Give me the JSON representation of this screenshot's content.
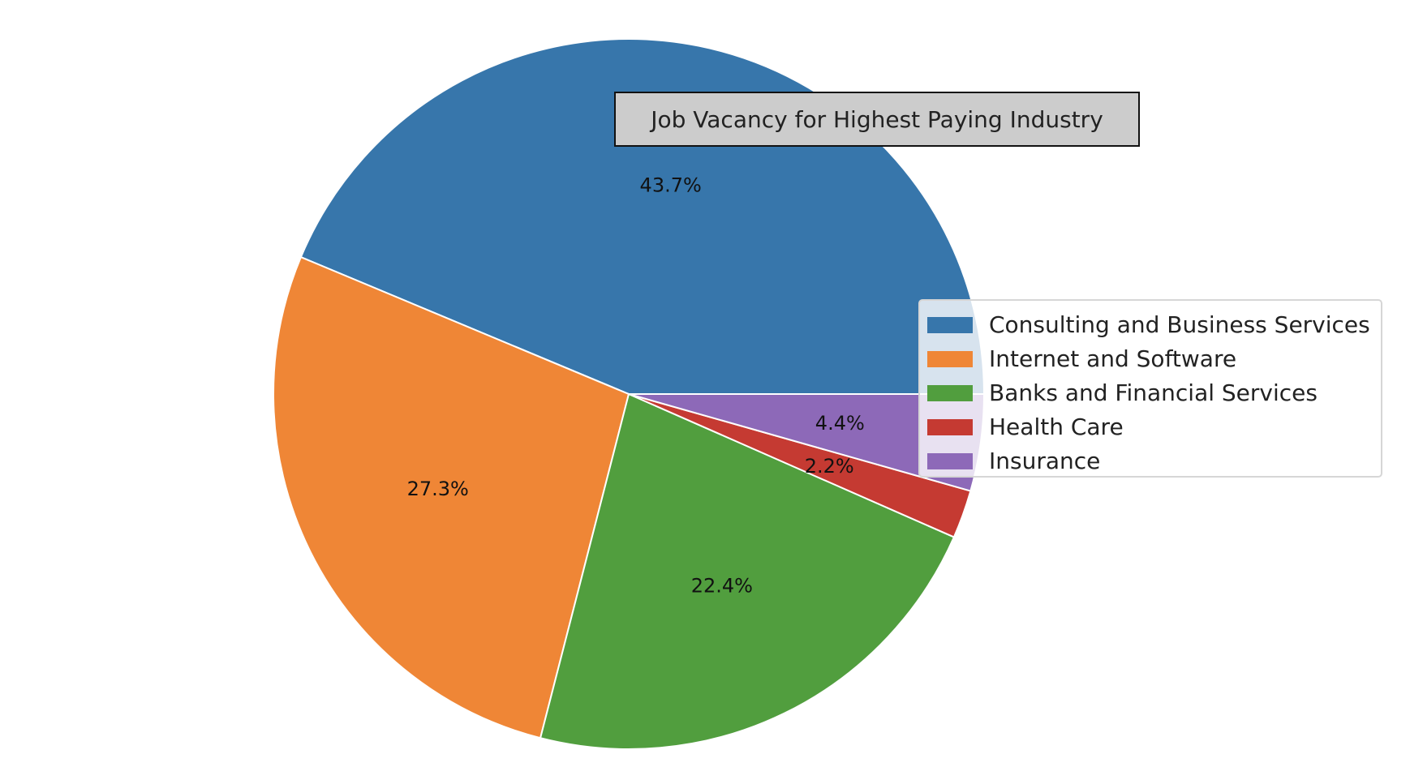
{
  "chart_data": {
    "type": "pie",
    "title": "Job Vacancy for Highest Paying Industry",
    "categories": [
      "Consulting and Business Services",
      "Internet and Software",
      "Banks and Financial Services",
      "Health Care",
      "Insurance"
    ],
    "values": [
      43.7,
      27.3,
      22.4,
      2.2,
      4.4
    ],
    "labels": [
      "43.7%",
      "27.3%",
      "22.4%",
      "2.2%",
      "4.4%"
    ],
    "colors": [
      "#3776ab",
      "#ef8636",
      "#519e3e",
      "#c53a32",
      "#8d69b8"
    ],
    "start_angle_deg": 0,
    "direction": "counterclockwise",
    "legend_position": "center-right"
  }
}
